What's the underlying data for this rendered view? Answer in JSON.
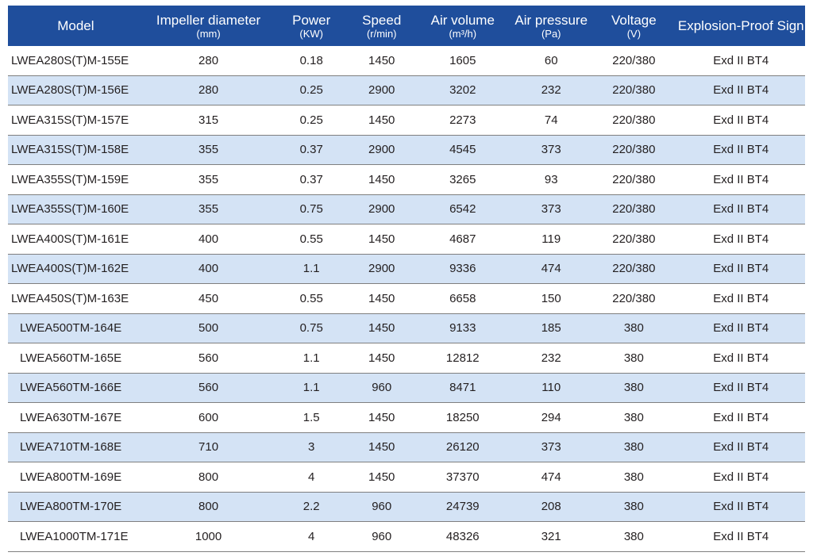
{
  "headers": [
    {
      "main": "Model",
      "unit": ""
    },
    {
      "main": "Impeller diameter",
      "unit": "(mm)"
    },
    {
      "main": "Power",
      "unit": "(KW)"
    },
    {
      "main": "Speed",
      "unit": "(r/min)"
    },
    {
      "main": "Air volume",
      "unit": "(m³/h)"
    },
    {
      "main": "Air pressure",
      "unit": "(Pa)"
    },
    {
      "main": "Voltage",
      "unit": "(V)"
    },
    {
      "main": "Explosion-Proof Sign",
      "unit": ""
    }
  ],
  "rows": [
    [
      "LWEA280S(T)M-155E",
      "280",
      "0.18",
      "1450",
      "1605",
      "60",
      "220/380",
      "Exd II BT4"
    ],
    [
      "LWEA280S(T)M-156E",
      "280",
      "0.25",
      "2900",
      "3202",
      "232",
      "220/380",
      "Exd II BT4"
    ],
    [
      "LWEA315S(T)M-157E",
      "315",
      "0.25",
      "1450",
      "2273",
      "74",
      "220/380",
      "Exd II BT4"
    ],
    [
      "LWEA315S(T)M-158E",
      "355",
      "0.37",
      "2900",
      "4545",
      "373",
      "220/380",
      "Exd II BT4"
    ],
    [
      "LWEA355S(T)M-159E",
      "355",
      "0.37",
      "1450",
      "3265",
      "93",
      "220/380",
      "Exd II BT4"
    ],
    [
      "LWEA355S(T)M-160E",
      "355",
      "0.75",
      "2900",
      "6542",
      "373",
      "220/380",
      "Exd II BT4"
    ],
    [
      "LWEA400S(T)M-161E",
      "400",
      "0.55",
      "1450",
      "4687",
      "119",
      "220/380",
      "Exd II BT4"
    ],
    [
      "LWEA400S(T)M-162E",
      "400",
      "1.1",
      "2900",
      "9336",
      "474",
      "220/380",
      "Exd II BT4"
    ],
    [
      "LWEA450S(T)M-163E",
      "450",
      "0.55",
      "1450",
      "6658",
      "150",
      "220/380",
      "Exd II BT4"
    ],
    [
      "LWEA500TM-164E",
      "500",
      "0.75",
      "1450",
      "9133",
      "185",
      "380",
      "Exd II BT4"
    ],
    [
      "LWEA560TM-165E",
      "560",
      "1.1",
      "1450",
      "12812",
      "232",
      "380",
      "Exd II BT4"
    ],
    [
      "LWEA560TM-166E",
      "560",
      "1.1",
      "960",
      "8471",
      "110",
      "380",
      "Exd II BT4"
    ],
    [
      "LWEA630TM-167E",
      "600",
      "1.5",
      "1450",
      "18250",
      "294",
      "380",
      "Exd II BT4"
    ],
    [
      "LWEA710TM-168E",
      "710",
      "3",
      "1450",
      "26120",
      "373",
      "380",
      "Exd II BT4"
    ],
    [
      "LWEA800TM-169E",
      "800",
      "4",
      "1450",
      "37370",
      "474",
      "380",
      "Exd II BT4"
    ],
    [
      "LWEA800TM-170E",
      "800",
      "2.2",
      "960",
      "24739",
      "208",
      "380",
      "Exd II BT4"
    ],
    [
      "LWEA1000TM-171E",
      "1000",
      "4",
      "960",
      "48326",
      "321",
      "380",
      "Exd II BT4"
    ]
  ],
  "colors": {
    "header_bg": "#1f4e9c",
    "header_text": "#ffffff",
    "stripe_bg": "#d4e3f5",
    "row_border": "#7f7f7f"
  }
}
